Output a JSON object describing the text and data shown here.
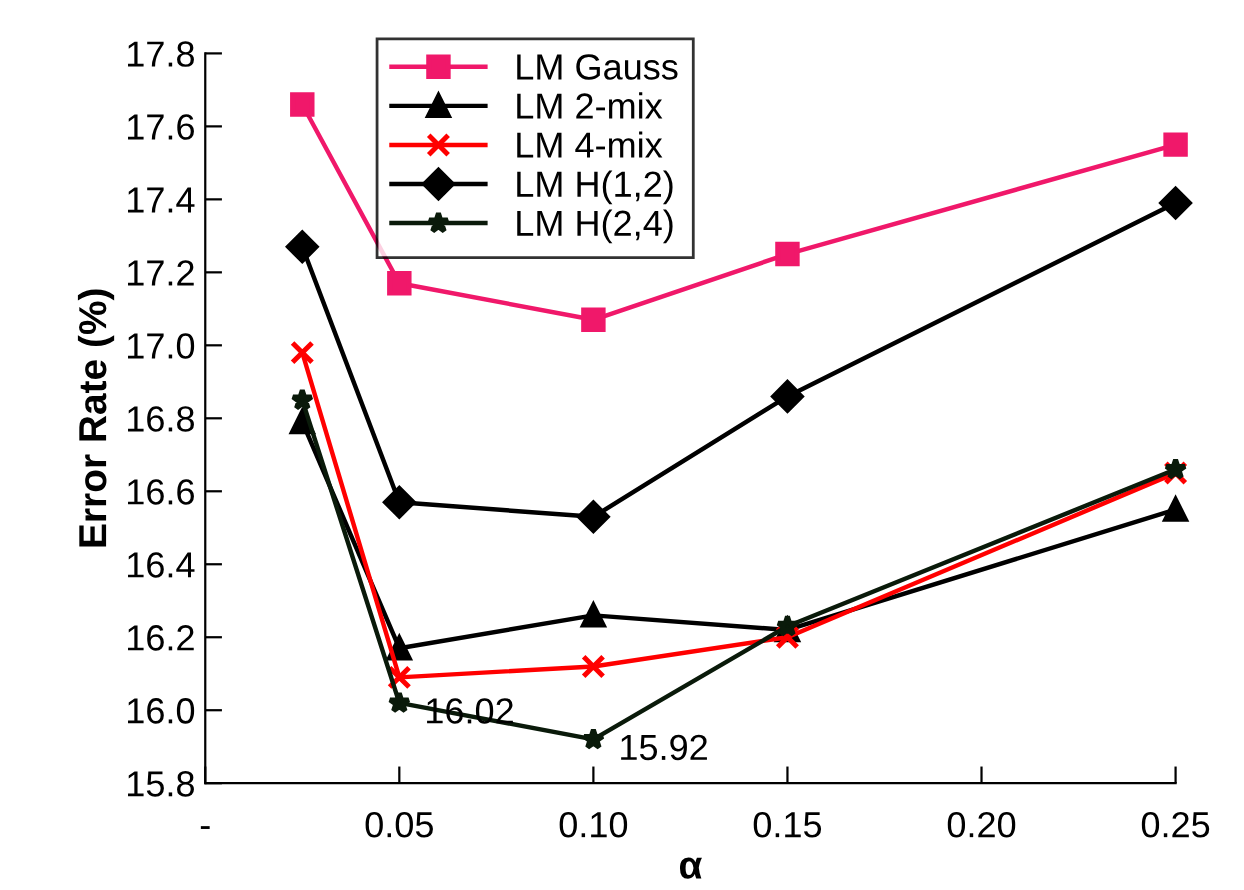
{
  "chart_data": {
    "type": "line",
    "xlabel": "α",
    "ylabel": "Error Rate (%)",
    "x": [
      0.025,
      0.05,
      0.1,
      0.15,
      0.25
    ],
    "series": [
      {
        "name": "LM Gauss",
        "color": "#f0186a",
        "marker": "square",
        "values": [
          17.66,
          17.17,
          17.07,
          17.25,
          17.55
        ]
      },
      {
        "name": "LM 2-mix",
        "color": "#000000",
        "marker": "triangle",
        "values": [
          16.79,
          16.17,
          16.26,
          16.22,
          16.55
        ]
      },
      {
        "name": "LM 4-mix",
        "color": "#ff0000",
        "marker": "cross",
        "values": [
          16.98,
          16.09,
          16.12,
          16.2,
          16.65
        ]
      },
      {
        "name": "LM H(1,2)",
        "color": "#000000",
        "marker": "diamond",
        "values": [
          17.27,
          16.57,
          16.53,
          16.86,
          17.39
        ]
      },
      {
        "name": "LM H(2,4)",
        "color": "#0a1a0a",
        "marker": "star",
        "values": [
          16.85,
          16.02,
          15.92,
          16.23,
          16.66
        ]
      }
    ],
    "annotations": [
      {
        "text": "16.02",
        "x": 0.05,
        "y": 16.02
      },
      {
        "text": "15.92",
        "x": 0.1,
        "y": 15.92
      }
    ],
    "xlim": [
      0,
      0.25
    ],
    "xticks": [
      {
        "value": 0,
        "label": "-"
      },
      0.05,
      {
        "value": 0.1,
        "label": "0.10"
      },
      0.15,
      {
        "value": 0.2,
        "label": "0.20"
      },
      0.25
    ],
    "ylim": [
      15.8,
      17.8
    ],
    "yticks": [
      15.8,
      {
        "value": 16,
        "label": "16.0"
      },
      16.2,
      16.4,
      16.6,
      16.8,
      {
        "value": 17,
        "label": "17.0"
      },
      17.2,
      17.4,
      17.6,
      17.8
    ],
    "grid": false,
    "legend": "top",
    "line_style": "solid"
  }
}
